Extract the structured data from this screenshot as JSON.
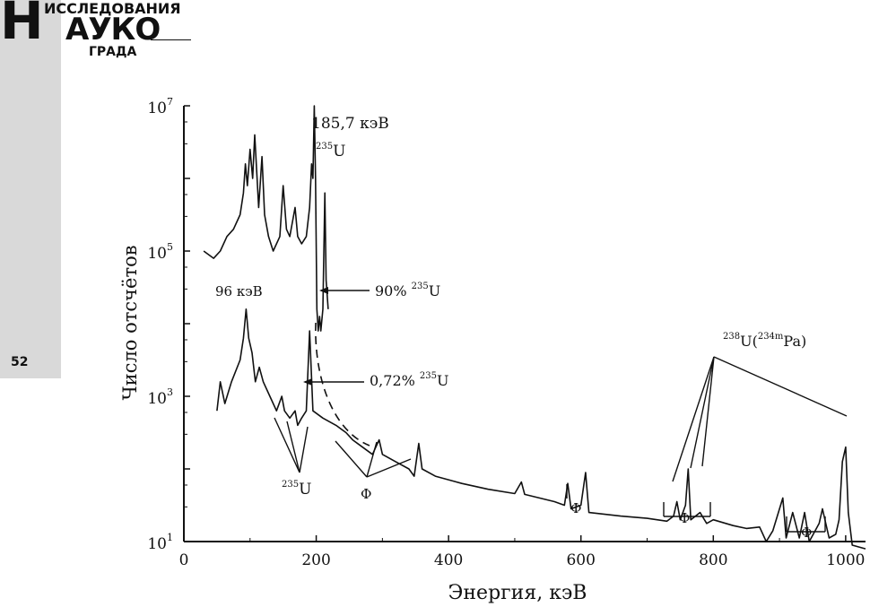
{
  "journal": {
    "logo_big": "Н",
    "logo_top": "ИССЛЕДОВАНИЯ",
    "logo_mid": "АУКО",
    "logo_bottom": "ГРАДА",
    "page_number": "52"
  },
  "chart_data": {
    "type": "line",
    "xlabel": "Энергия, кэВ",
    "ylabel": "Число отсчётов",
    "xlim": [
      0,
      1030
    ],
    "ylim_log10": [
      1,
      7
    ],
    "y_scale": "log",
    "x_ticks": [
      {
        "value": 0,
        "label": "0"
      },
      {
        "value": 200,
        "label": "200"
      },
      {
        "value": 400,
        "label": "400"
      },
      {
        "value": 600,
        "label": "600"
      },
      {
        "value": 800,
        "label": "800"
      },
      {
        "value": 1000,
        "label": "1000"
      }
    ],
    "y_ticks": [
      {
        "exp": 1,
        "base": "10",
        "sup": "1"
      },
      {
        "exp": 3,
        "base": "10",
        "sup": "3"
      },
      {
        "exp": 5,
        "base": "10",
        "sup": "5"
      },
      {
        "exp": 7,
        "base": "10",
        "sup": "7"
      }
    ],
    "series": [
      {
        "id": "upper",
        "points": [
          [
            30,
            5.0
          ],
          [
            45,
            4.9
          ],
          [
            55,
            5.0
          ],
          [
            65,
            5.2
          ],
          [
            75,
            5.3
          ],
          [
            85,
            5.5
          ],
          [
            90,
            5.8
          ],
          [
            93,
            6.2
          ],
          [
            96,
            5.9
          ],
          [
            100,
            6.4
          ],
          [
            104,
            6.0
          ],
          [
            107,
            6.6
          ],
          [
            110,
            6.1
          ],
          [
            113,
            5.6
          ],
          [
            118,
            6.3
          ],
          [
            122,
            5.5
          ],
          [
            128,
            5.2
          ],
          [
            135,
            5.0
          ],
          [
            145,
            5.2
          ],
          [
            150,
            5.9
          ],
          [
            155,
            5.3
          ],
          [
            160,
            5.2
          ],
          [
            168,
            5.6
          ],
          [
            172,
            5.2
          ],
          [
            178,
            5.1
          ],
          [
            185,
            5.2
          ],
          [
            190,
            5.6
          ],
          [
            193,
            6.2
          ],
          [
            195,
            6.0
          ],
          [
            197,
            7.0
          ],
          [
            199,
            6.0
          ],
          [
            201,
            4.2
          ],
          [
            203,
            3.9
          ],
          [
            205,
            4.1
          ],
          [
            207,
            3.9
          ],
          [
            210,
            4.2
          ],
          [
            213,
            5.8
          ],
          [
            215,
            4.6
          ],
          [
            218,
            4.2
          ]
        ]
      },
      {
        "id": "lower",
        "points": [
          [
            50,
            2.8
          ],
          [
            55,
            3.2
          ],
          [
            62,
            2.9
          ],
          [
            72,
            3.2
          ],
          [
            85,
            3.5
          ],
          [
            90,
            3.8
          ],
          [
            94,
            4.2
          ],
          [
            98,
            3.8
          ],
          [
            103,
            3.6
          ],
          [
            108,
            3.2
          ],
          [
            114,
            3.4
          ],
          [
            120,
            3.2
          ],
          [
            130,
            3.0
          ],
          [
            140,
            2.8
          ],
          [
            148,
            3.0
          ],
          [
            152,
            2.8
          ],
          [
            160,
            2.7
          ],
          [
            168,
            2.8
          ],
          [
            172,
            2.6
          ],
          [
            178,
            2.7
          ],
          [
            185,
            2.8
          ],
          [
            190,
            3.9
          ],
          [
            195,
            2.8
          ],
          [
            210,
            2.7
          ],
          [
            230,
            2.6
          ],
          [
            245,
            2.5
          ],
          [
            255,
            2.4
          ],
          [
            270,
            2.3
          ],
          [
            285,
            2.2
          ],
          [
            295,
            2.4
          ],
          [
            300,
            2.2
          ],
          [
            320,
            2.1
          ],
          [
            340,
            2.0
          ],
          [
            348,
            1.9
          ],
          [
            355,
            2.35
          ],
          [
            360,
            2.0
          ],
          [
            380,
            1.9
          ],
          [
            420,
            1.8
          ],
          [
            460,
            1.72
          ],
          [
            500,
            1.66
          ],
          [
            510,
            1.82
          ],
          [
            515,
            1.65
          ],
          [
            560,
            1.55
          ],
          [
            575,
            1.5
          ],
          [
            580,
            1.8
          ],
          [
            585,
            1.45
          ],
          [
            600,
            1.5
          ],
          [
            607,
            1.95
          ],
          [
            612,
            1.4
          ],
          [
            660,
            1.35
          ],
          [
            700,
            1.32
          ],
          [
            730,
            1.28
          ],
          [
            740,
            1.35
          ],
          [
            745,
            1.55
          ],
          [
            750,
            1.3
          ],
          [
            758,
            1.5
          ],
          [
            762,
            2.0
          ],
          [
            766,
            1.3
          ],
          [
            780,
            1.4
          ],
          [
            790,
            1.25
          ],
          [
            800,
            1.3
          ],
          [
            830,
            1.22
          ],
          [
            850,
            1.18
          ],
          [
            870,
            1.2
          ],
          [
            880,
            1.0
          ],
          [
            890,
            1.15
          ],
          [
            905,
            1.6
          ],
          [
            910,
            1.05
          ],
          [
            920,
            1.4
          ],
          [
            930,
            1.05
          ],
          [
            938,
            1.4
          ],
          [
            945,
            1.0
          ],
          [
            960,
            1.25
          ],
          [
            965,
            1.45
          ],
          [
            975,
            1.05
          ],
          [
            985,
            1.1
          ],
          [
            990,
            1.3
          ],
          [
            995,
            2.1
          ],
          [
            1000,
            2.3
          ],
          [
            1004,
            1.4
          ],
          [
            1010,
            0.95
          ],
          [
            1030,
            0.9
          ]
        ]
      }
    ],
    "annotations": [
      {
        "id": "peak-185",
        "text": "185,7  кэВ"
      },
      {
        "id": "u235-top",
        "pre": "235",
        "main": "U"
      },
      {
        "id": "kev-96",
        "text": "96 кэВ"
      },
      {
        "id": "ninety-pct",
        "main": "90% ",
        "sup": "235",
        "tail": "U"
      },
      {
        "id": "natural-pct",
        "main": "0,72% ",
        "sup": "235",
        "tail": "U"
      },
      {
        "id": "u238",
        "sup1": "238",
        "main1": "U(",
        "sup2": "234m",
        "main2": "Pa)"
      },
      {
        "id": "u235-bottom",
        "pre": "235",
        "main": "U"
      },
      {
        "id": "phi-1",
        "text": "Ф"
      },
      {
        "id": "phi-2",
        "text": "Ф"
      },
      {
        "id": "phi-3",
        "text": "Ф"
      },
      {
        "id": "phi-4",
        "text": "Ф"
      }
    ]
  }
}
